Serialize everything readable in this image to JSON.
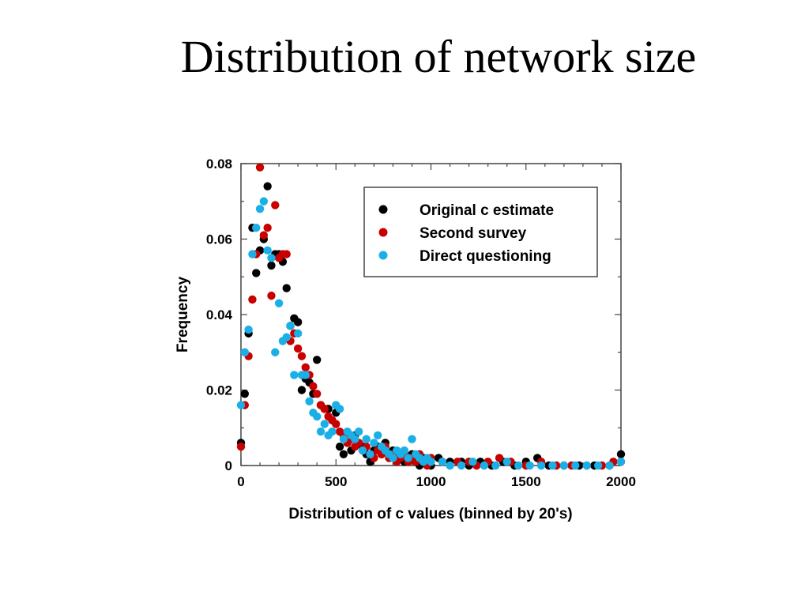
{
  "slide": {
    "title": "Distribution of network size"
  },
  "chart_data": {
    "type": "scatter",
    "xlabel": "Distribution of c values (binned by 20's)",
    "ylabel": "Frequency",
    "xlim": [
      0,
      2000
    ],
    "ylim": [
      0,
      0.08
    ],
    "x_ticks": [
      0,
      500,
      1000,
      1500,
      2000
    ],
    "y_ticks": [
      0,
      0.02,
      0.04,
      0.06,
      0.08
    ],
    "x_tick_labels": [
      "0",
      "500",
      "1000",
      "1500",
      "2000"
    ],
    "y_tick_labels": [
      "0",
      "0.02",
      "0.04",
      "0.06",
      "0.08"
    ],
    "grid": false,
    "legend_position": "top-right",
    "series": [
      {
        "name": "Original c estimate",
        "color": "#000000",
        "points": [
          [
            0,
            0.006
          ],
          [
            20,
            0.019
          ],
          [
            40,
            0.035
          ],
          [
            60,
            0.063
          ],
          [
            80,
            0.051
          ],
          [
            100,
            0.057
          ],
          [
            120,
            0.06
          ],
          [
            140,
            0.074
          ],
          [
            160,
            0.053
          ],
          [
            180,
            0.056
          ],
          [
            200,
            0.056
          ],
          [
            220,
            0.054
          ],
          [
            240,
            0.047
          ],
          [
            260,
            0.037
          ],
          [
            280,
            0.039
          ],
          [
            300,
            0.038
          ],
          [
            320,
            0.02
          ],
          [
            340,
            0.023
          ],
          [
            360,
            0.022
          ],
          [
            380,
            0.019
          ],
          [
            400,
            0.028
          ],
          [
            420,
            0.016
          ],
          [
            440,
            0.015
          ],
          [
            460,
            0.015
          ],
          [
            480,
            0.012
          ],
          [
            500,
            0.014
          ],
          [
            520,
            0.005
          ],
          [
            540,
            0.003
          ],
          [
            560,
            0.006
          ],
          [
            580,
            0.004
          ],
          [
            600,
            0.008
          ],
          [
            620,
            0.006
          ],
          [
            640,
            0.005
          ],
          [
            660,
            0.003
          ],
          [
            680,
            0.001
          ],
          [
            700,
            0.004
          ],
          [
            720,
            0.005
          ],
          [
            740,
            0.003
          ],
          [
            760,
            0.006
          ],
          [
            780,
            0.002
          ],
          [
            800,
            0.004
          ],
          [
            820,
            0.003
          ],
          [
            840,
            0.002
          ],
          [
            860,
            0.001
          ],
          [
            880,
            0.002
          ],
          [
            900,
            0.003
          ],
          [
            920,
            0.001
          ],
          [
            940,
            0.0
          ],
          [
            960,
            0.002
          ],
          [
            980,
            0.001
          ],
          [
            1000,
            0.0
          ],
          [
            1040,
            0.002
          ],
          [
            1100,
            0.001
          ],
          [
            1160,
            0.001
          ],
          [
            1200,
            0.0
          ],
          [
            1260,
            0.001
          ],
          [
            1320,
            0.0
          ],
          [
            1380,
            0.001
          ],
          [
            1440,
            0.0
          ],
          [
            1500,
            0.001
          ],
          [
            1560,
            0.002
          ],
          [
            1620,
            0.0
          ],
          [
            1700,
            0.0
          ],
          [
            1780,
            0.0
          ],
          [
            1860,
            0.0
          ],
          [
            1940,
            0.0
          ],
          [
            2000,
            0.003
          ]
        ]
      },
      {
        "name": "Second survey",
        "color": "#c80000",
        "points": [
          [
            0,
            0.005
          ],
          [
            20,
            0.016
          ],
          [
            40,
            0.029
          ],
          [
            60,
            0.044
          ],
          [
            80,
            0.056
          ],
          [
            100,
            0.079
          ],
          [
            120,
            0.061
          ],
          [
            140,
            0.063
          ],
          [
            160,
            0.045
          ],
          [
            180,
            0.069
          ],
          [
            200,
            0.055
          ],
          [
            220,
            0.056
          ],
          [
            240,
            0.056
          ],
          [
            260,
            0.033
          ],
          [
            280,
            0.035
          ],
          [
            300,
            0.031
          ],
          [
            320,
            0.029
          ],
          [
            340,
            0.026
          ],
          [
            360,
            0.024
          ],
          [
            380,
            0.021
          ],
          [
            400,
            0.019
          ],
          [
            420,
            0.016
          ],
          [
            440,
            0.015
          ],
          [
            460,
            0.013
          ],
          [
            480,
            0.012
          ],
          [
            500,
            0.011
          ],
          [
            520,
            0.009
          ],
          [
            540,
            0.008
          ],
          [
            560,
            0.006
          ],
          [
            580,
            0.007
          ],
          [
            600,
            0.005
          ],
          [
            620,
            0.006
          ],
          [
            640,
            0.004
          ],
          [
            660,
            0.005
          ],
          [
            680,
            0.003
          ],
          [
            700,
            0.002
          ],
          [
            720,
            0.004
          ],
          [
            740,
            0.003
          ],
          [
            760,
            0.005
          ],
          [
            780,
            0.002
          ],
          [
            800,
            0.003
          ],
          [
            820,
            0.001
          ],
          [
            840,
            0.002
          ],
          [
            860,
            0.003
          ],
          [
            880,
            0.001
          ],
          [
            900,
            0.002
          ],
          [
            920,
            0.001
          ],
          [
            940,
            0.003
          ],
          [
            960,
            0.001
          ],
          [
            980,
            0.0
          ],
          [
            1000,
            0.002
          ],
          [
            1060,
            0.001
          ],
          [
            1140,
            0.001
          ],
          [
            1200,
            0.001
          ],
          [
            1240,
            0.0
          ],
          [
            1300,
            0.001
          ],
          [
            1360,
            0.002
          ],
          [
            1420,
            0.001
          ],
          [
            1500,
            0.0
          ],
          [
            1580,
            0.001
          ],
          [
            1660,
            0.0
          ],
          [
            1740,
            0.0
          ],
          [
            1820,
            0.0
          ],
          [
            1900,
            0.0
          ],
          [
            1960,
            0.001
          ],
          [
            2000,
            0.001
          ]
        ]
      },
      {
        "name": "Direct questioning",
        "color": "#1aafe6",
        "points": [
          [
            0,
            0.016
          ],
          [
            20,
            0.03
          ],
          [
            40,
            0.036
          ],
          [
            60,
            0.056
          ],
          [
            80,
            0.063
          ],
          [
            100,
            0.068
          ],
          [
            120,
            0.07
          ],
          [
            140,
            0.057
          ],
          [
            160,
            0.055
          ],
          [
            180,
            0.03
          ],
          [
            200,
            0.043
          ],
          [
            220,
            0.033
          ],
          [
            240,
            0.034
          ],
          [
            260,
            0.037
          ],
          [
            280,
            0.024
          ],
          [
            300,
            0.035
          ],
          [
            320,
            0.024
          ],
          [
            340,
            0.024
          ],
          [
            360,
            0.017
          ],
          [
            380,
            0.014
          ],
          [
            400,
            0.013
          ],
          [
            420,
            0.009
          ],
          [
            440,
            0.011
          ],
          [
            460,
            0.008
          ],
          [
            480,
            0.009
          ],
          [
            500,
            0.016
          ],
          [
            520,
            0.015
          ],
          [
            540,
            0.007
          ],
          [
            560,
            0.009
          ],
          [
            580,
            0.008
          ],
          [
            600,
            0.007
          ],
          [
            620,
            0.009
          ],
          [
            640,
            0.004
          ],
          [
            660,
            0.007
          ],
          [
            680,
            0.003
          ],
          [
            700,
            0.006
          ],
          [
            720,
            0.008
          ],
          [
            740,
            0.005
          ],
          [
            760,
            0.004
          ],
          [
            780,
            0.003
          ],
          [
            800,
            0.002
          ],
          [
            820,
            0.004
          ],
          [
            840,
            0.003
          ],
          [
            860,
            0.004
          ],
          [
            880,
            0.002
          ],
          [
            900,
            0.007
          ],
          [
            920,
            0.003
          ],
          [
            940,
            0.002
          ],
          [
            960,
            0.001
          ],
          [
            980,
            0.002
          ],
          [
            1000,
            0.001
          ],
          [
            1060,
            0.001
          ],
          [
            1100,
            0.0
          ],
          [
            1160,
            0.0
          ],
          [
            1220,
            0.001
          ],
          [
            1280,
            0.0
          ],
          [
            1340,
            0.0
          ],
          [
            1400,
            0.001
          ],
          [
            1460,
            0.0
          ],
          [
            1520,
            0.0
          ],
          [
            1580,
            0.0
          ],
          [
            1640,
            0.0
          ],
          [
            1700,
            0.0
          ],
          [
            1760,
            0.0
          ],
          [
            1820,
            0.0
          ],
          [
            1880,
            0.0
          ],
          [
            1940,
            0.0
          ],
          [
            2000,
            0.001
          ]
        ]
      }
    ]
  }
}
